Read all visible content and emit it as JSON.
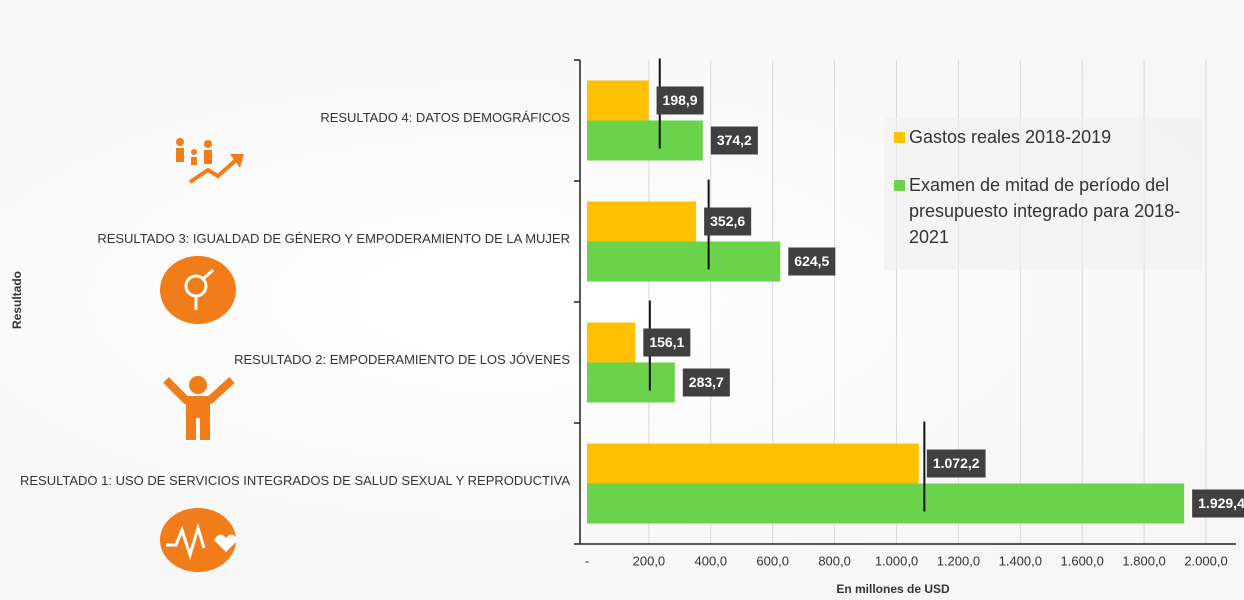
{
  "chart_data": {
    "type": "bar",
    "orientation": "horizontal",
    "x_label": "En millones de USD",
    "y_label": "Resultado",
    "categories": [
      "RESULTADO 4: DATOS DEMOGRÁFICOS",
      "RESULTADO 3: IGUALDAD DE GÉNERO Y EMPODERAMIENTO DE LA MUJER",
      "RESULTADO 2: EMPODERAMIENTO DE LOS JÓVENES",
      "RESULTADO 1: USO DE SERVICIOS INTEGRADOS DE SALUD SEXUAL Y REPRODUCTIVA"
    ],
    "series": [
      {
        "name": "Gastos reales 2018-2019",
        "color": "#FFC000",
        "values": [
          198.9,
          352.6,
          156.1,
          1072.2
        ],
        "value_labels": [
          "198,9",
          "352,6",
          "156,1",
          "1.072,2"
        ]
      },
      {
        "name": "Examen de mitad de período del presupuesto integrado para 2018-2021",
        "color": "#6BD24B",
        "values": [
          374.2,
          624.5,
          283.7,
          1929.4
        ],
        "value_labels": [
          "374,2",
          "624,5",
          "283,7",
          "1.929,4"
        ]
      }
    ],
    "markers": [
      235,
      393,
      203,
      1090
    ],
    "xlim": [
      0,
      2000
    ],
    "xticks": [
      {
        "value": 0,
        "label": "-"
      },
      {
        "value": 200,
        "label": "200,0"
      },
      {
        "value": 400,
        "label": "400,0"
      },
      {
        "value": 600,
        "label": "600,0"
      },
      {
        "value": 800,
        "label": "800,0"
      },
      {
        "value": 1000,
        "label": "1.000,0"
      },
      {
        "value": 1200,
        "label": "1.200,0"
      },
      {
        "value": 1400,
        "label": "1.400,0"
      },
      {
        "value": 1600,
        "label": "1.600,0"
      },
      {
        "value": 1800,
        "label": "1.800,0"
      },
      {
        "value": 2000,
        "label": "2.000,0"
      }
    ],
    "grid": true
  }
}
